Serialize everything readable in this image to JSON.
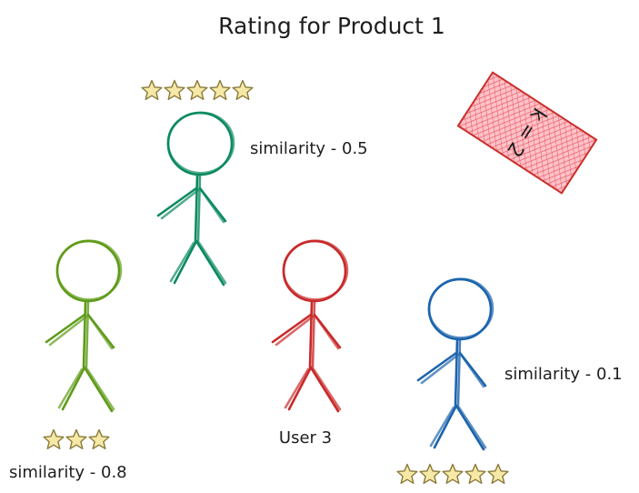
{
  "title": "Rating for Product 1",
  "k_label": "k = 2",
  "colors": {
    "ink": "#1e1e1e",
    "star_fill": "#f6e8a6",
    "star_stroke": "#8a7a3a",
    "k_box_fill": "#ff8a95",
    "k_box_stroke": "#c9302c"
  },
  "users": [
    {
      "id": "top",
      "color": "#0c8a5f",
      "icon": "stick-figure-icon",
      "rating": 5,
      "similarity": "similarity - 0.5"
    },
    {
      "id": "left",
      "color": "#5f9b1a",
      "icon": "stick-figure-icon",
      "rating": 3,
      "similarity": "similarity - 0.8"
    },
    {
      "id": "target",
      "color": "#c92a2a",
      "icon": "stick-figure-icon",
      "label": "User 3"
    },
    {
      "id": "right",
      "color": "#1c64ad",
      "icon": "stick-figure-icon",
      "rating": 5,
      "similarity": "similarity - 0.1"
    }
  ]
}
